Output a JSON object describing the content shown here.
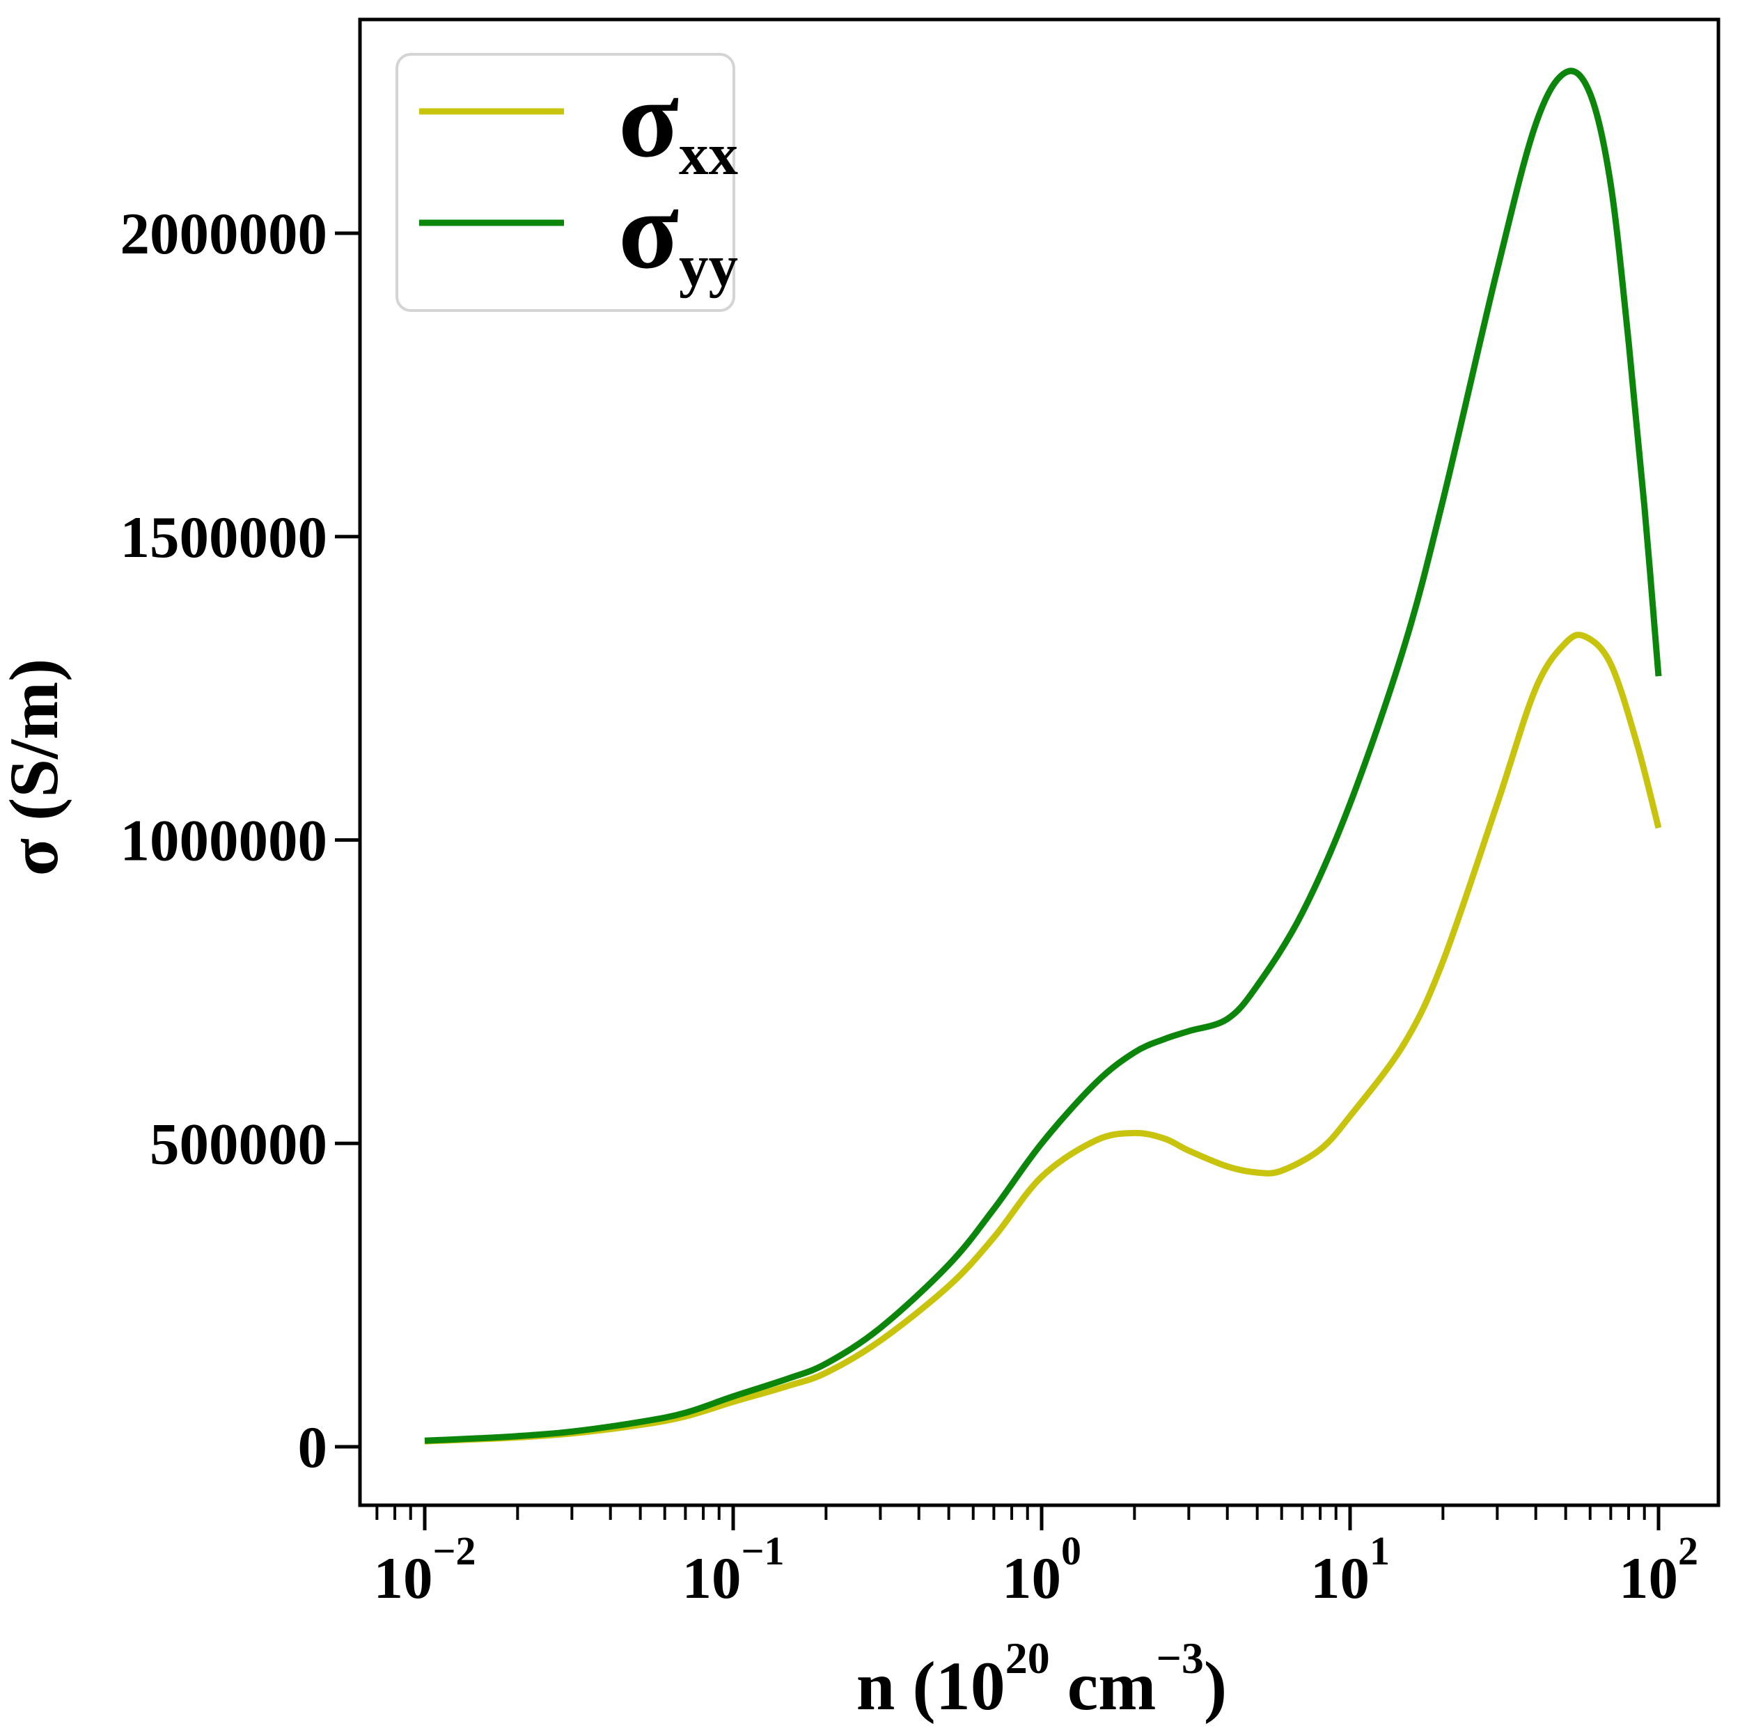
{
  "chart_data": {
    "type": "line",
    "title": "",
    "xlabel_plain": "n (10^20 cm^-3)",
    "xlabel_parts": [
      {
        "t": "n (10",
        "sup": false
      },
      {
        "t": "20",
        "sup": true
      },
      {
        "t": " cm",
        "sup": false
      },
      {
        "t": "−3",
        "sup": true
      },
      {
        "t": ")",
        "sup": false
      }
    ],
    "ylabel": "σ (S/m)",
    "x_scale": "log",
    "xlim": [
      0.01,
      100
    ],
    "xlim_display_exp": [
      -2.21,
      2.19
    ],
    "ylim": [
      -103000,
      2356000
    ],
    "grid": false,
    "x_major_ticks": [
      {
        "n": 0.01,
        "exp": -2,
        "label_base": "10",
        "label_exp": "−2"
      },
      {
        "n": 0.1,
        "exp": -1,
        "label_base": "10",
        "label_exp": "−1"
      },
      {
        "n": 1,
        "exp": 0,
        "label_base": "10",
        "label_exp": "0"
      },
      {
        "n": 10,
        "exp": 1,
        "label_base": "10",
        "label_exp": "1"
      },
      {
        "n": 100,
        "exp": 2,
        "label_base": "10",
        "label_exp": "2"
      }
    ],
    "y_ticks": [
      0,
      500000,
      1000000,
      1500000,
      2000000
    ],
    "y_tick_labels": [
      "0",
      "500000",
      "1000000",
      "1500000",
      "2000000"
    ],
    "legend": {
      "position": "upper left",
      "entries": [
        {
          "name": "sigma-xx",
          "main": "σ",
          "sub": "xx",
          "color": "#c8c40d"
        },
        {
          "name": "sigma-yy",
          "main": "σ",
          "sub": "yy",
          "color": "#0b860b"
        }
      ]
    },
    "series": [
      {
        "name": "sigma_xx",
        "color": "#c8c40d",
        "x": [
          0.01,
          0.015,
          0.02,
          0.03,
          0.05,
          0.07,
          0.1,
          0.15,
          0.2,
          0.3,
          0.5,
          0.7,
          1,
          1.5,
          2,
          2.5,
          3,
          4,
          5,
          6,
          8,
          10,
          15,
          20,
          30,
          40,
          50,
          58,
          70,
          85,
          100
        ],
        "values": [
          9000,
          12500,
          15500,
          22000,
          36000,
          50000,
          74000,
          100000,
          122000,
          175000,
          265000,
          345000,
          445000,
          505000,
          517000,
          508000,
          488000,
          462000,
          452000,
          455000,
          490000,
          545000,
          665000,
          800000,
          1060000,
          1250000,
          1325000,
          1335000,
          1290000,
          1160000,
          1020000
        ]
      },
      {
        "name": "sigma_yy",
        "color": "#0b860b",
        "x": [
          0.01,
          0.015,
          0.02,
          0.03,
          0.05,
          0.07,
          0.1,
          0.15,
          0.2,
          0.3,
          0.5,
          0.7,
          1,
          1.5,
          2,
          2.5,
          3,
          4,
          5,
          7,
          10,
          15,
          20,
          30,
          40,
          50,
          60,
          70,
          80,
          90,
          100
        ],
        "values": [
          10000,
          14000,
          17500,
          25000,
          41000,
          56000,
          83000,
          112000,
          137000,
          196000,
          300000,
          392000,
          500000,
          600000,
          650000,
          672000,
          685000,
          705000,
          760000,
          880000,
          1060000,
          1320000,
          1560000,
          1940000,
          2180000,
          2265000,
          2230000,
          2080000,
          1820000,
          1550000,
          1270000
        ]
      }
    ],
    "annotations": {
      "sigma_yy_peak": {
        "n": 50,
        "sigma": 2265000
      },
      "sigma_xx_peak": {
        "n": 58,
        "sigma": 1335000
      },
      "sigma_xx_local_max": {
        "n": 2,
        "sigma": 517000
      },
      "sigma_xx_local_min": {
        "n": 5,
        "sigma": 452000
      }
    },
    "styles": {
      "spine_color": "#000000",
      "tick_color": "#000000",
      "legend_border_color": "#d4d4d4",
      "legend_fill": "#ffffff",
      "background": "#ffffff"
    }
  }
}
